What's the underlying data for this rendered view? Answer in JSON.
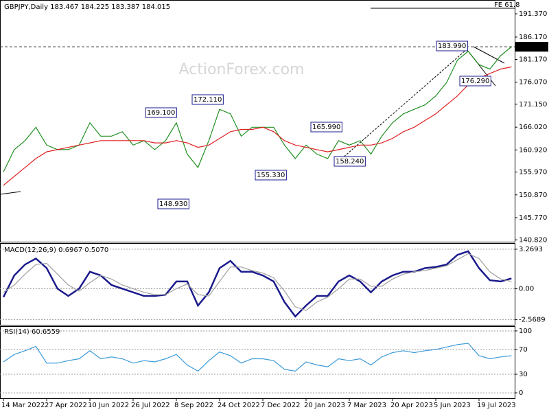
{
  "chart_data": [
    {
      "type": "line",
      "title": "GBPJPY,Daily  183.467 184.225 183.387 184.015",
      "watermark": "ActionForex.com",
      "categories": [
        "14 Mar 2022",
        null,
        null,
        null,
        "27 Apr 2022",
        null,
        null,
        null,
        "10 Jun 2022",
        null,
        null,
        null,
        "26 Jul 2022",
        null,
        null,
        null,
        "8 Sep 2022",
        null,
        null,
        null,
        "24 Oct 2022",
        null,
        null,
        null,
        "7 Dec 2022",
        null,
        null,
        null,
        "20 Jan 2023",
        null,
        null,
        null,
        "7 Mar 2023",
        null,
        null,
        null,
        "20 Apr 2023",
        null,
        null,
        null,
        "5 Jun 2023",
        null,
        null,
        null,
        "19 Jul 2023",
        null,
        null,
        null
      ],
      "series": [
        {
          "name": "GBPJPY",
          "color": "#1f8f1f",
          "values": [
            156,
            161,
            163,
            166,
            162,
            161,
            161,
            162,
            167,
            164,
            164,
            165,
            162,
            163,
            161,
            163,
            167,
            160,
            157,
            163,
            170,
            169,
            164,
            166,
            166,
            166,
            162,
            159,
            162,
            160,
            159,
            163,
            162,
            163,
            160,
            164,
            167,
            169,
            170,
            171,
            173,
            176,
            181,
            183,
            180,
            179,
            182,
            184
          ]
        },
        {
          "name": "MA",
          "color": "#e02020",
          "values": [
            153,
            155,
            157,
            159,
            160.5,
            161,
            161.5,
            162,
            162.5,
            163,
            163,
            163,
            163,
            163,
            162.5,
            162.5,
            163,
            162.5,
            161.5,
            162,
            163.5,
            165,
            165.5,
            165.5,
            166,
            165,
            163,
            162,
            161.5,
            161,
            160.5,
            161,
            161.5,
            162,
            162,
            162.5,
            163.5,
            165,
            166,
            167.5,
            169,
            171,
            173,
            175.5,
            177,
            178,
            179,
            179.5
          ]
        }
      ],
      "ylim": [
        140.4,
        194.3
      ],
      "yticks": [
        {
          "value": 191.37,
          "label": "191.370"
        },
        {
          "value": 186.17,
          "label": "186.170"
        },
        {
          "value": 181.17,
          "label": "181.170"
        },
        {
          "value": 176.07,
          "label": "176.070"
        },
        {
          "value": 171.15,
          "label": "171.150"
        },
        {
          "value": 166.02,
          "label": "166.020"
        },
        {
          "value": 160.92,
          "label": "160.920"
        },
        {
          "value": 155.97,
          "label": "155.970"
        },
        {
          "value": 150.87,
          "label": "150.870"
        },
        {
          "value": 145.77,
          "label": "145.770"
        },
        {
          "value": 140.82,
          "label": "140.820"
        }
      ],
      "last_price": {
        "value": 183.99,
        "label": "183.990"
      },
      "fe_label": "FE 61.8",
      "annotations": [
        "169.100",
        "172.110",
        "148.930",
        "155.330",
        "165.990",
        "158.240",
        "183.990",
        "176.290"
      ]
    },
    {
      "type": "line",
      "title": "MACD(12,26,9) 0.6967 0.5070",
      "series": [
        {
          "name": "MACD",
          "color": "#1a1a8c",
          "values": [
            -0.7,
            1.1,
            2.0,
            2.5,
            1.7,
            0,
            -0.6,
            0,
            1.4,
            1.1,
            0.3,
            0,
            -0.3,
            -0.6,
            -0.6,
            -0.5,
            0.6,
            0.6,
            -1.4,
            -0.3,
            1.7,
            2.3,
            1.4,
            1.4,
            1.1,
            0.6,
            -1.1,
            -2.3,
            -1.4,
            -0.6,
            -0.6,
            0.6,
            1.1,
            0.6,
            -0.3,
            0.6,
            1.1,
            1.4,
            1.4,
            1.7,
            1.8,
            2.0,
            2.8,
            3.1,
            1.7,
            0.7,
            0.6,
            0.85
          ]
        },
        {
          "name": "Signal",
          "color": "#a0a0a0",
          "values": [
            -0.3,
            0.3,
            1.2,
            2.0,
            2.1,
            1.2,
            0.3,
            -0.2,
            0.5,
            1.1,
            0.8,
            0.3,
            0,
            -0.3,
            -0.5,
            -0.5,
            0,
            0.4,
            -0.5,
            -0.6,
            0.6,
            1.8,
            1.8,
            1.5,
            1.3,
            0.9,
            -0.2,
            -1.5,
            -1.8,
            -1.1,
            -0.7,
            0,
            0.8,
            0.8,
            0.2,
            0.2,
            0.8,
            1.2,
            1.4,
            1.5,
            1.7,
            1.9,
            2.4,
            2.9,
            2.5,
            1.4,
            0.8,
            0.6
          ]
        }
      ],
      "ylim": [
        -2.99,
        3.72
      ],
      "yticks": [
        3.2693,
        {
          "value": 0,
          "label": "0.00"
        },
        -2.5689
      ]
    },
    {
      "type": "line",
      "title": "RSI(14) 60.6559",
      "series": [
        {
          "name": "RSI",
          "color": "#3a9ad9",
          "values": [
            50,
            62,
            68,
            75,
            48,
            48,
            52,
            55,
            68,
            55,
            58,
            55,
            48,
            52,
            50,
            55,
            62,
            45,
            35,
            52,
            66,
            60,
            48,
            55,
            55,
            52,
            38,
            35,
            50,
            45,
            42,
            55,
            52,
            55,
            45,
            58,
            65,
            68,
            65,
            68,
            70,
            74,
            78,
            80,
            60,
            55,
            58,
            60
          ]
        }
      ],
      "ylim": [
        -8.8,
        106.6
      ],
      "yticks": [
        100,
        70,
        30,
        0
      ]
    }
  ]
}
